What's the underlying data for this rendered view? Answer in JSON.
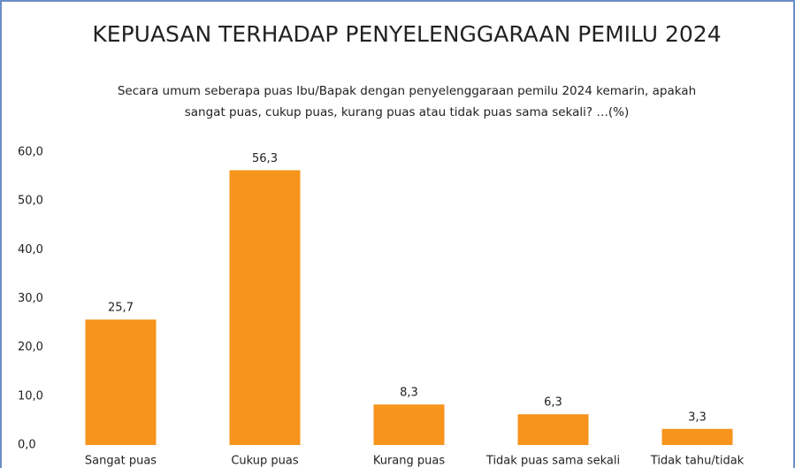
{
  "chart_data": {
    "type": "bar",
    "title": "KEPUASAN TERHADAP PENYELENGGARAAN PEMILU 2024",
    "subtitle": [
      "Secara umum seberapa puas Ibu/Bapak dengan penyelenggaraan pemilu 2024 kemarin, apakah",
      "sangat puas, cukup puas, kurang puas atau tidak puas sama sekali? …(%)"
    ],
    "categories": [
      "Sangat puas",
      "Cukup puas",
      "Kurang puas",
      "Tidak puas sama sekali",
      "Tidak tahu/tidak"
    ],
    "values": [
      25.7,
      56.3,
      8.3,
      6.3,
      3.3
    ],
    "value_labels": [
      "25,7",
      "56,3",
      "8,3",
      "6,3",
      "3,3"
    ],
    "color": "#f7941d",
    "ylim": [
      0,
      60
    ],
    "yticks": [
      {
        "value": 0,
        "label": "0,0"
      },
      {
        "value": 10,
        "label": "10,0"
      },
      {
        "value": 20,
        "label": "20,0"
      },
      {
        "value": 30,
        "label": "30,0"
      },
      {
        "value": 40,
        "label": "40,0"
      },
      {
        "value": 50,
        "label": "50,0"
      },
      {
        "value": 60,
        "label": "60,0"
      }
    ],
    "grid": false
  }
}
